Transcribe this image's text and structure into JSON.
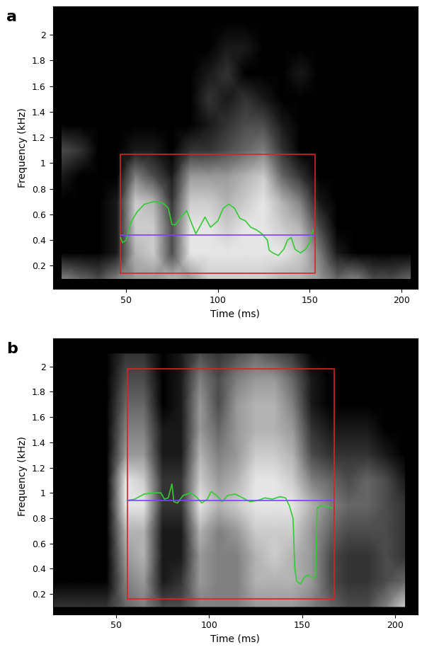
{
  "chart_data": [
    {
      "type": "heatmap",
      "title": "a",
      "xlabel": "Time (ms)",
      "ylabel": "Frequency (kHz)",
      "xlim": [
        10,
        209
      ],
      "ylim": [
        0.02,
        2.22
      ],
      "xticks": [
        50,
        100,
        150,
        200
      ],
      "yticks": [
        0.2,
        0.4,
        0.6,
        0.8,
        1,
        1.2,
        1.4,
        1.6,
        1.8,
        2
      ],
      "cell_x": [
        15,
        25,
        35,
        45,
        55,
        65,
        75,
        85,
        95,
        105,
        115,
        125,
        135,
        145,
        155,
        165,
        175,
        185,
        195,
        205
      ],
      "cell_y": [
        0.1,
        0.3,
        0.5,
        0.7,
        0.9,
        1.1,
        1.3,
        1.5,
        1.7,
        1.9,
        2.1
      ],
      "cells": [
        [
          0.5,
          0.4,
          0.3,
          0.5,
          0.6,
          0.6,
          0.7,
          0.6,
          0.8,
          0.8,
          0.8,
          0.8,
          0.7,
          0.7,
          0.6,
          0.4,
          0.5,
          0.3,
          0.3,
          0.4
        ],
        [
          0,
          0,
          0,
          0.1,
          0.7,
          0.8,
          0.3,
          0.9,
          0.9,
          0.9,
          0.9,
          0.9,
          0.9,
          0.8,
          0.5,
          0.1,
          0,
          0,
          0,
          0
        ],
        [
          0,
          0,
          0,
          0.1,
          0.8,
          0.8,
          0.3,
          0.9,
          0.9,
          0.8,
          0.9,
          0.9,
          0.8,
          0.7,
          0.3,
          0,
          0,
          0,
          0,
          0
        ],
        [
          0,
          0,
          0,
          0.1,
          0.8,
          0.7,
          0.2,
          0.8,
          0.8,
          0.7,
          0.8,
          0.9,
          0.7,
          0.5,
          0.1,
          0,
          0,
          0,
          0,
          0
        ],
        [
          0.1,
          0,
          0,
          0,
          0.5,
          0.3,
          0.1,
          0.6,
          0.6,
          0.6,
          0.7,
          0.8,
          0.4,
          0.2,
          0,
          0,
          0,
          0,
          0,
          0
        ],
        [
          0.3,
          0.2,
          0,
          0,
          0.1,
          0.1,
          0,
          0.2,
          0.2,
          0.3,
          0.4,
          0.5,
          0.2,
          0,
          0,
          0,
          0,
          0,
          0,
          0
        ],
        [
          0,
          0,
          0,
          0,
          0,
          0,
          0,
          0,
          0.1,
          0.2,
          0.3,
          0.3,
          0.1,
          0,
          0,
          0,
          0,
          0,
          0,
          0
        ],
        [
          0,
          0,
          0,
          0,
          0,
          0,
          0,
          0,
          0.2,
          0.1,
          0.2,
          0.1,
          0,
          0,
          0,
          0,
          0,
          0,
          0,
          0
        ],
        [
          0,
          0,
          0,
          0,
          0,
          0,
          0,
          0,
          0.1,
          0.2,
          0,
          0,
          0,
          0.1,
          0,
          0,
          0,
          0,
          0,
          0
        ],
        [
          0,
          0,
          0,
          0,
          0,
          0,
          0,
          0,
          0,
          0.1,
          0.1,
          0,
          0,
          0,
          0,
          0,
          0,
          0,
          0,
          0
        ],
        [
          0,
          0,
          0,
          0,
          0,
          0,
          0,
          0,
          0,
          0,
          0,
          0,
          0,
          0,
          0,
          0,
          0,
          0,
          0,
          0
        ]
      ],
      "series": [
        {
          "type": "line",
          "color": "#dd2222",
          "x": [
            47,
            153,
            153,
            47,
            47
          ],
          "values": [
            0.14,
            0.14,
            1.07,
            1.07,
            0.14
          ]
        },
        {
          "type": "line",
          "color": "#33cc33",
          "x": [
            47,
            48,
            50,
            53,
            56,
            60,
            65,
            70,
            73,
            75,
            77,
            80,
            83,
            86,
            88,
            90,
            93,
            96,
            100,
            103,
            106,
            109,
            112,
            115,
            118,
            121,
            124,
            127,
            128,
            130,
            133,
            136,
            138,
            140,
            142,
            145,
            148,
            150,
            152
          ],
          "values": [
            0.42,
            0.38,
            0.4,
            0.55,
            0.62,
            0.68,
            0.7,
            0.69,
            0.65,
            0.52,
            0.52,
            0.58,
            0.63,
            0.52,
            0.45,
            0.5,
            0.58,
            0.5,
            0.55,
            0.65,
            0.68,
            0.65,
            0.57,
            0.55,
            0.5,
            0.48,
            0.45,
            0.4,
            0.32,
            0.3,
            0.28,
            0.33,
            0.4,
            0.42,
            0.33,
            0.3,
            0.33,
            0.38,
            0.48
          ]
        },
        {
          "type": "line",
          "color": "#7f3fff",
          "x": [
            47,
            153
          ],
          "values": [
            0.44,
            0.44
          ]
        }
      ]
    },
    {
      "type": "heatmap",
      "title": "b",
      "xlabel": "Time (ms)",
      "ylabel": "Frequency (kHz)",
      "xlim": [
        16,
        212
      ],
      "ylim": [
        0.04,
        2.22
      ],
      "xticks": [
        50,
        100,
        150,
        200
      ],
      "yticks": [
        0.2,
        0.4,
        0.6,
        0.8,
        1,
        1.2,
        1.4,
        1.6,
        1.8,
        2
      ],
      "cell_x": [
        15,
        25,
        35,
        45,
        55,
        65,
        75,
        85,
        95,
        105,
        115,
        125,
        135,
        145,
        155,
        165,
        175,
        185,
        195,
        205
      ],
      "cell_y": [
        0.1,
        0.3,
        0.5,
        0.7,
        0.9,
        1.1,
        1.3,
        1.5,
        1.7,
        1.9,
        2.1
      ],
      "cells": [
        [
          0.2,
          0.2,
          0.2,
          0.2,
          0.4,
          0.5,
          0.3,
          0.3,
          0.5,
          0.5,
          0.5,
          0.6,
          0.6,
          0.6,
          0.5,
          0.4,
          0.3,
          0.3,
          0.5,
          0.8
        ],
        [
          0,
          0,
          0,
          0,
          0.5,
          0.6,
          0.1,
          0.2,
          0.6,
          0.5,
          0.5,
          0.7,
          0.7,
          0.7,
          0.6,
          0.3,
          0.2,
          0.2,
          0.3,
          0.4
        ],
        [
          0,
          0,
          0,
          0,
          0.6,
          0.7,
          0.1,
          0.1,
          0.6,
          0.5,
          0.5,
          0.7,
          0.8,
          0.7,
          0.6,
          0.3,
          0.2,
          0.2,
          0.3,
          0.2
        ],
        [
          0,
          0,
          0,
          0,
          0.7,
          0.7,
          0.1,
          0.1,
          0.7,
          0.5,
          0.6,
          0.8,
          0.8,
          0.8,
          0.6,
          0.4,
          0.3,
          0.3,
          0.3,
          0.2
        ],
        [
          0,
          0,
          0,
          0,
          0.9,
          0.9,
          0.2,
          0.2,
          0.9,
          0.7,
          0.8,
          0.9,
          0.9,
          0.9,
          0.7,
          0.5,
          0.4,
          0.4,
          0.3,
          0.2
        ],
        [
          0,
          0,
          0,
          0,
          0.9,
          0.8,
          0.2,
          0.2,
          0.8,
          0.6,
          0.7,
          0.9,
          0.9,
          0.8,
          0.5,
          0.4,
          0.3,
          0.4,
          0.3,
          0.1
        ],
        [
          0,
          0,
          0,
          0,
          0.6,
          0.6,
          0.1,
          0.1,
          0.7,
          0.5,
          0.6,
          0.8,
          0.8,
          0.7,
          0.3,
          0.2,
          0.2,
          0.2,
          0.1,
          0
        ],
        [
          0,
          0,
          0,
          0,
          0.5,
          0.5,
          0.1,
          0.1,
          0.6,
          0.4,
          0.6,
          0.7,
          0.7,
          0.6,
          0.2,
          0.1,
          0.1,
          0.1,
          0,
          0
        ],
        [
          0,
          0,
          0,
          0,
          0.4,
          0.4,
          0,
          0.1,
          0.6,
          0.3,
          0.6,
          0.7,
          0.7,
          0.5,
          0.1,
          0,
          0,
          0,
          0,
          0
        ],
        [
          0,
          0,
          0,
          0,
          0.3,
          0.3,
          0,
          0.1,
          0.5,
          0.3,
          0.5,
          0.6,
          0.6,
          0.4,
          0.1,
          0,
          0,
          0,
          0,
          0
        ],
        [
          0,
          0,
          0,
          0,
          0.2,
          0.2,
          0,
          0.1,
          0.3,
          0.2,
          0.3,
          0.4,
          0.3,
          0.2,
          0,
          0,
          0,
          0,
          0,
          0
        ]
      ],
      "series": [
        {
          "type": "line",
          "color": "#dd2222",
          "x": [
            56,
            167,
            167,
            56,
            56
          ],
          "values": [
            0.16,
            0.16,
            1.98,
            1.98,
            0.16
          ]
        },
        {
          "type": "line",
          "color": "#33cc33",
          "x": [
            56,
            60,
            65,
            70,
            74,
            76,
            78,
            80,
            81,
            83,
            86,
            90,
            93,
            96,
            99,
            101,
            104,
            107,
            110,
            114,
            118,
            122,
            126,
            130,
            134,
            138,
            141,
            143,
            145,
            146,
            147,
            149,
            151,
            153,
            155,
            157,
            158,
            160,
            163,
            166
          ],
          "values": [
            0.94,
            0.95,
            0.99,
            1.0,
            1.0,
            0.95,
            0.96,
            1.07,
            0.93,
            0.92,
            0.98,
            1.0,
            0.97,
            0.92,
            0.95,
            1.01,
            0.98,
            0.93,
            0.98,
            0.99,
            0.96,
            0.93,
            0.94,
            0.96,
            0.95,
            0.97,
            0.96,
            0.9,
            0.8,
            0.4,
            0.3,
            0.28,
            0.33,
            0.35,
            0.33,
            0.33,
            0.88,
            0.9,
            0.89,
            0.88
          ]
        },
        {
          "type": "line",
          "color": "#7f3fff",
          "x": [
            56,
            167
          ],
          "values": [
            0.94,
            0.94
          ]
        }
      ]
    }
  ]
}
